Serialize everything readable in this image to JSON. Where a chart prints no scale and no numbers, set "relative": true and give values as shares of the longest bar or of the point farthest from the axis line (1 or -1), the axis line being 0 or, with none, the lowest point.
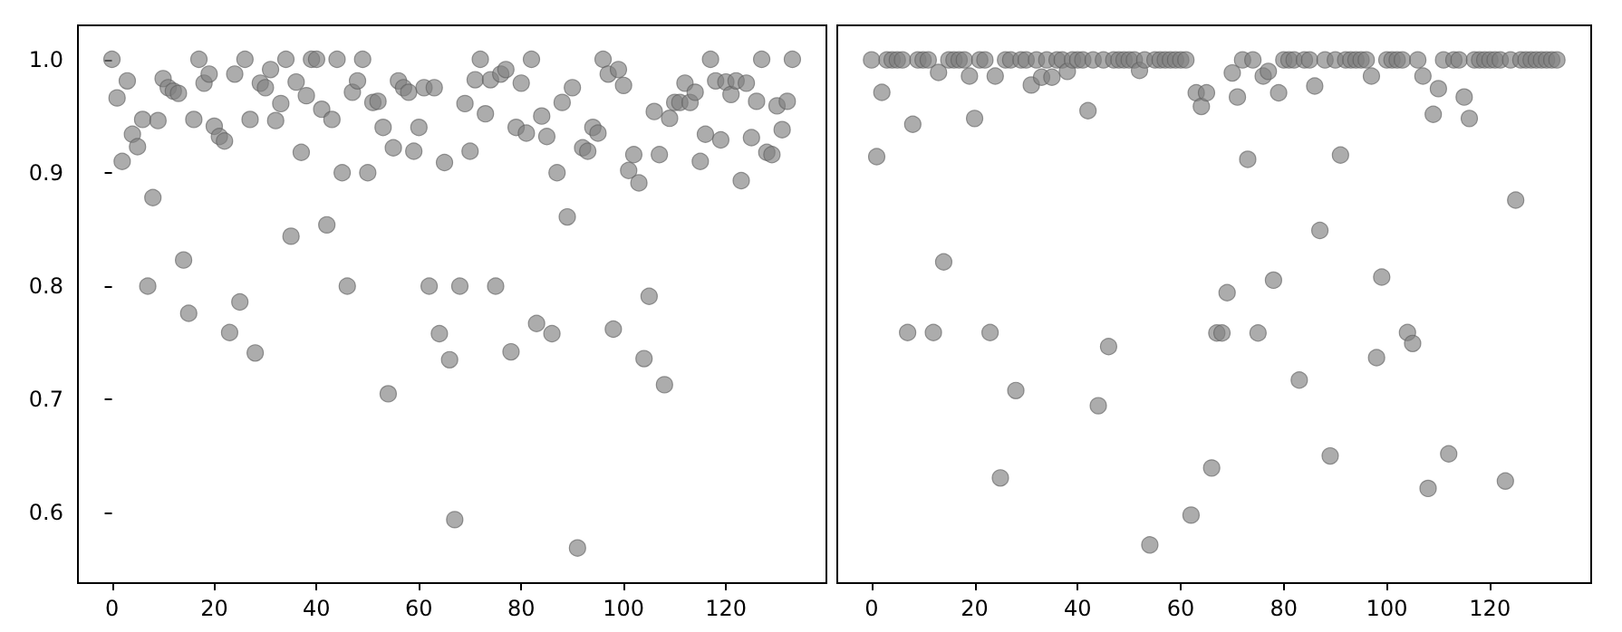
{
  "chart_data": [
    {
      "type": "scatter",
      "color": "#808080",
      "marker": "circle",
      "grid": false,
      "x": [
        0,
        1,
        2,
        3,
        4,
        5,
        6,
        7,
        8,
        9,
        10,
        11,
        12,
        13,
        14,
        15,
        16,
        17,
        18,
        19,
        20,
        21,
        22,
        23,
        24,
        25,
        26,
        27,
        28,
        29,
        30,
        31,
        32,
        33,
        34,
        35,
        36,
        37,
        38,
        39,
        40,
        41,
        42,
        43,
        44,
        45,
        46,
        47,
        48,
        49,
        50,
        51,
        52,
        53,
        54,
        55,
        56,
        57,
        58,
        59,
        60,
        61,
        62,
        63,
        64,
        65,
        66,
        67,
        68,
        69,
        70,
        71,
        72,
        73,
        74,
        75,
        76,
        77,
        78,
        79,
        80,
        81,
        82,
        83,
        84,
        85,
        86,
        87,
        88,
        89,
        90,
        91,
        92,
        93,
        94,
        95,
        96,
        97,
        98,
        99,
        100,
        101,
        102,
        103,
        104,
        105,
        106,
        107,
        108,
        109,
        110,
        111,
        112,
        113,
        114,
        115,
        116,
        117,
        118,
        119,
        120,
        121,
        122,
        123,
        124,
        125,
        126,
        127,
        128,
        129,
        130,
        131,
        132,
        133
      ],
      "values": [
        1.0,
        0.966,
        0.91,
        0.981,
        0.934,
        0.923,
        0.947,
        0.8,
        0.878,
        0.946,
        0.983,
        0.975,
        0.972,
        0.97,
        0.823,
        0.776,
        0.947,
        1.0,
        0.979,
        0.987,
        0.941,
        0.932,
        0.928,
        0.759,
        0.987,
        0.786,
        1.0,
        0.947,
        0.741,
        0.979,
        0.975,
        0.991,
        0.946,
        0.961,
        1.0,
        0.844,
        0.98,
        0.918,
        0.968,
        1.0,
        1.0,
        0.956,
        0.854,
        0.947,
        1.0,
        0.9,
        0.8,
        0.971,
        0.981,
        1.0,
        0.9,
        0.962,
        0.963,
        0.94,
        0.705,
        0.922,
        0.981,
        0.975,
        0.971,
        0.919,
        0.94,
        0.975,
        0.8,
        0.975,
        0.758,
        0.909,
        0.735,
        0.594,
        0.8,
        0.961,
        0.919,
        0.982,
        1.0,
        0.952,
        0.982,
        0.8,
        0.987,
        0.991,
        0.742,
        0.94,
        0.979,
        0.935,
        1.0,
        0.767,
        0.95,
        0.932,
        0.758,
        0.9,
        0.962,
        0.861,
        0.975,
        0.569,
        0.922,
        0.919,
        0.94,
        0.935,
        1.0,
        0.987,
        0.762,
        0.991,
        0.977,
        0.902,
        0.916,
        0.891,
        0.736,
        0.791,
        0.954,
        0.916,
        0.713,
        0.948,
        0.962,
        0.962,
        0.979,
        0.962,
        0.971,
        0.91,
        0.934,
        1.0,
        0.981,
        0.929,
        0.98,
        0.969,
        0.981,
        0.893,
        0.979,
        0.931,
        0.963,
        1.0,
        0.918,
        0.916,
        0.959,
        0.938,
        0.963,
        1.0
      ],
      "xlim": [
        -6.65,
        139.65
      ],
      "xticks": [
        0,
        20,
        40,
        60,
        80,
        100,
        120
      ],
      "ylim": [
        0.538,
        1.03
      ],
      "yticks": [
        {
          "value": 0.6,
          "label": "0.6"
        },
        {
          "value": 0.7,
          "label": "0.7"
        },
        {
          "value": 0.8,
          "label": "0.8"
        },
        {
          "value": 0.9,
          "label": "0.9"
        },
        {
          "value": 1.0,
          "label": "1.0"
        }
      ]
    },
    {
      "type": "scatter",
      "color": "#808080",
      "marker": "circle",
      "grid": false,
      "relative": true,
      "tick_labels": "x",
      "x": [
        0,
        1,
        2,
        3,
        4,
        5,
        6,
        7,
        8,
        9,
        10,
        11,
        12,
        13,
        14,
        15,
        16,
        17,
        18,
        19,
        20,
        21,
        22,
        23,
        24,
        25,
        26,
        27,
        28,
        29,
        30,
        31,
        32,
        33,
        34,
        35,
        36,
        37,
        38,
        39,
        40,
        41,
        42,
        43,
        44,
        45,
        46,
        47,
        48,
        49,
        50,
        51,
        52,
        53,
        54,
        55,
        56,
        57,
        58,
        59,
        60,
        61,
        62,
        63,
        64,
        65,
        66,
        67,
        68,
        69,
        70,
        71,
        72,
        73,
        74,
        75,
        76,
        77,
        78,
        79,
        80,
        81,
        82,
        83,
        84,
        85,
        86,
        87,
        88,
        89,
        90,
        91,
        92,
        93,
        94,
        95,
        96,
        97,
        98,
        99,
        100,
        101,
        102,
        103,
        104,
        105,
        106,
        107,
        108,
        109,
        110,
        111,
        112,
        113,
        114,
        115,
        116,
        117,
        118,
        119,
        120,
        121,
        122,
        123,
        124,
        125,
        126,
        127,
        128,
        129,
        130,
        131,
        132,
        133
      ],
      "values": [
        1,
        0.815,
        0.938,
        1,
        1,
        1,
        1,
        0.479,
        0.877,
        1,
        1,
        1,
        0.479,
        0.976,
        0.614,
        1,
        1,
        1,
        1,
        0.969,
        0.888,
        1,
        1,
        0.479,
        0.969,
        0.201,
        1,
        1,
        0.368,
        1,
        1,
        0.952,
        1,
        0.967,
        1,
        0.967,
        1,
        1,
        0.978,
        1,
        1,
        1,
        0.903,
        1,
        0.339,
        1,
        0.452,
        1,
        1,
        1,
        1,
        1,
        0.98,
        1,
        0.073,
        1,
        1,
        1,
        1,
        1,
        1,
        1,
        0.13,
        0.937,
        0.911,
        0.937,
        0.22,
        0.478,
        0.478,
        0.555,
        0.975,
        0.929,
        1,
        0.81,
        1,
        0.478,
        0.969,
        0.978,
        0.579,
        0.937,
        1,
        1,
        1,
        0.388,
        1,
        1,
        0.95,
        0.674,
        1,
        0.243,
        1,
        0.818,
        1,
        1,
        1,
        1,
        1,
        0.969,
        0.431,
        0.585,
        1,
        1,
        1,
        1,
        0.479,
        0.458,
        1,
        0.969,
        0.181,
        0.896,
        0.945,
        1,
        0.247,
        1,
        1,
        0.929,
        0.888,
        1,
        1,
        1,
        1,
        1,
        1,
        0.195,
        1,
        0.732,
        1,
        1,
        1,
        1,
        1,
        1,
        1,
        1
      ],
      "xlim": [
        -6.65,
        139.65
      ],
      "xticks": [
        0,
        20,
        40,
        60,
        80,
        100,
        120
      ]
    }
  ]
}
